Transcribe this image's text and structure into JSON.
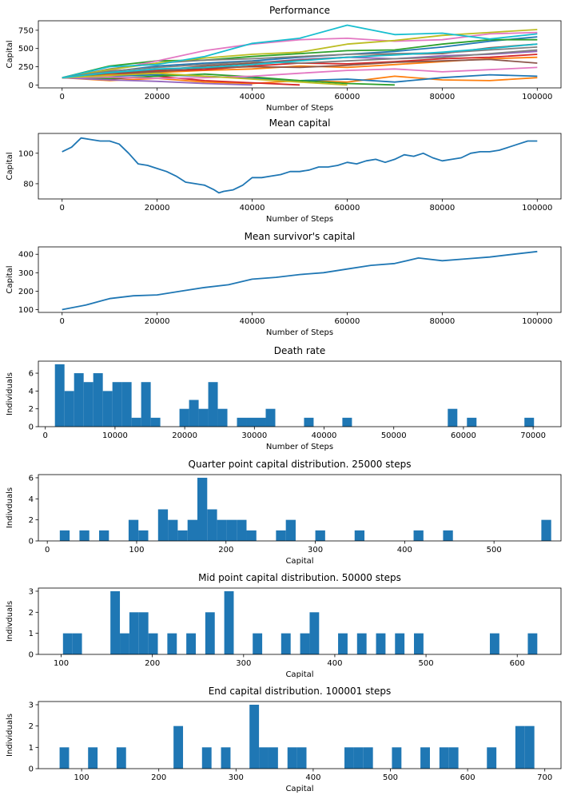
{
  "figure": {
    "colors": {
      "bar": "#1f77b4",
      "axis": "#000000"
    }
  },
  "chart_data": [
    {
      "type": "line",
      "title": "Performance",
      "xlabel": "Number of Steps",
      "ylabel": "Capital",
      "xlim": [
        -5000,
        105000
      ],
      "ylim": [
        -40,
        880
      ],
      "xticks": [
        0,
        20000,
        40000,
        60000,
        80000,
        100000
      ],
      "yticks": [
        0,
        250,
        500,
        750
      ],
      "x": [
        0,
        10000,
        20000,
        30000,
        40000,
        50000,
        60000,
        70000,
        80000,
        90000,
        100000
      ],
      "series_colors": [
        "#1f77b4",
        "#ff7f0e",
        "#2ca02c",
        "#d62728",
        "#9467bd",
        "#8c564b",
        "#e377c2",
        "#7f7f7f",
        "#bcbd22",
        "#17becf"
      ],
      "series": [
        {
          "values": [
            100,
            180,
            260,
            300,
            330,
            380,
            420,
            460,
            520,
            600,
            660
          ]
        },
        {
          "values": [
            100,
            60,
            90,
            40,
            20,
            60,
            40,
            120,
            70,
            60,
            100
          ]
        },
        {
          "values": [
            100,
            260,
            330,
            340,
            390,
            430,
            470,
            480,
            560,
            620,
            620
          ]
        },
        {
          "values": [
            100,
            80,
            120,
            60,
            30,
            0,
            null,
            null,
            null,
            null,
            null
          ]
        },
        {
          "values": [
            100,
            150,
            220,
            200,
            300,
            350,
            380,
            360,
            400,
            420,
            460
          ]
        },
        {
          "values": [
            100,
            150,
            200,
            260,
            300,
            340,
            380,
            420,
            430,
            510,
            560
          ]
        },
        {
          "values": [
            100,
            200,
            330,
            470,
            560,
            620,
            640,
            600,
            620,
            700,
            720
          ]
        },
        {
          "values": [
            100,
            220,
            300,
            340,
            360,
            390,
            420,
            430,
            440,
            480,
            520
          ]
        },
        {
          "values": [
            100,
            210,
            300,
            370,
            420,
            450,
            560,
            610,
            680,
            720,
            760
          ]
        },
        {
          "values": [
            100,
            250,
            280,
            390,
            570,
            640,
            820,
            690,
            710,
            630,
            700
          ]
        },
        {
          "values": [
            100,
            120,
            140,
            120,
            90,
            60,
            80,
            40,
            100,
            140,
            120
          ]
        },
        {
          "values": [
            100,
            140,
            170,
            200,
            220,
            260,
            240,
            280,
            320,
            360,
            380
          ]
        },
        {
          "values": [
            100,
            90,
            120,
            150,
            110,
            60,
            20,
            0,
            null,
            null,
            null
          ]
        },
        {
          "values": [
            100,
            130,
            190,
            210,
            260,
            300,
            290,
            320,
            360,
            380,
            420
          ]
        },
        {
          "values": [
            100,
            70,
            50,
            20,
            0,
            null,
            null,
            null,
            null,
            null,
            null
          ]
        },
        {
          "values": [
            100,
            160,
            180,
            230,
            250,
            240,
            270,
            310,
            330,
            350,
            300
          ]
        },
        {
          "values": [
            100,
            110,
            90,
            100,
            120,
            160,
            200,
            220,
            180,
            210,
            240
          ]
        },
        {
          "values": [
            100,
            190,
            240,
            280,
            320,
            300,
            330,
            360,
            380,
            430,
            480
          ]
        },
        {
          "values": [
            100,
            130,
            160,
            120,
            80,
            40,
            0,
            null,
            null,
            null,
            null
          ]
        },
        {
          "values": [
            100,
            170,
            220,
            240,
            280,
            330,
            380,
            410,
            450,
            500,
            560
          ]
        }
      ]
    },
    {
      "type": "line",
      "title": "Mean capital",
      "xlabel": "Number of Steps",
      "ylabel": "Capital",
      "xlim": [
        -5000,
        105000
      ],
      "ylim": [
        70,
        113
      ],
      "xticks": [
        0,
        20000,
        40000,
        60000,
        80000,
        100000
      ],
      "yticks": [
        80,
        100
      ],
      "x": [
        0,
        2000,
        4000,
        6000,
        8000,
        10000,
        12000,
        14000,
        16000,
        18000,
        20000,
        22000,
        24000,
        26000,
        28000,
        30000,
        32000,
        33000,
        34000,
        36000,
        38000,
        40000,
        42000,
        44000,
        46000,
        48000,
        50000,
        52000,
        54000,
        56000,
        58000,
        60000,
        62000,
        64000,
        66000,
        68000,
        70000,
        72000,
        74000,
        76000,
        78000,
        80000,
        82000,
        84000,
        86000,
        88000,
        90000,
        92000,
        94000,
        96000,
        98000,
        100000
      ],
      "series": [
        {
          "values": [
            101,
            104,
            110,
            109,
            108,
            108,
            106,
            100,
            93,
            92,
            90,
            88,
            85,
            81,
            80,
            79,
            76,
            74,
            75,
            76,
            79,
            84,
            84,
            85,
            86,
            88,
            88,
            89,
            91,
            91,
            92,
            94,
            93,
            95,
            96,
            94,
            96,
            99,
            98,
            100,
            97,
            95,
            96,
            97,
            100,
            101,
            101,
            102,
            104,
            106,
            108,
            108
          ]
        }
      ]
    },
    {
      "type": "line",
      "title": "Mean survivor's capital",
      "xlabel": "Number of Steps",
      "ylabel": "Capital",
      "xlim": [
        -5000,
        105000
      ],
      "ylim": [
        85,
        440
      ],
      "xticks": [
        0,
        20000,
        40000,
        60000,
        80000,
        100000
      ],
      "yticks": [
        100,
        200,
        300,
        400
      ],
      "x": [
        0,
        5000,
        10000,
        15000,
        20000,
        25000,
        30000,
        35000,
        40000,
        45000,
        50000,
        55000,
        60000,
        65000,
        70000,
        75000,
        80000,
        85000,
        90000,
        95000,
        100000
      ],
      "series": [
        {
          "values": [
            100,
            125,
            160,
            175,
            180,
            200,
            220,
            235,
            265,
            275,
            290,
            300,
            320,
            340,
            350,
            380,
            365,
            375,
            385,
            400,
            415
          ]
        }
      ]
    },
    {
      "type": "bar",
      "title": "Death rate",
      "xlabel": "Number of Steps",
      "ylabel": "Individuals",
      "xlim": [
        -1000,
        74000
      ],
      "ylim": [
        0,
        7.35
      ],
      "xticks": [
        0,
        10000,
        20000,
        30000,
        40000,
        50000,
        60000,
        70000
      ],
      "yticks": [
        0,
        2,
        4,
        6
      ],
      "bin_width": 1375,
      "bins": [
        {
          "x": 1375,
          "value": 7
        },
        {
          "x": 2750,
          "value": 4
        },
        {
          "x": 4125,
          "value": 6
        },
        {
          "x": 5500,
          "value": 5
        },
        {
          "x": 6875,
          "value": 6
        },
        {
          "x": 8250,
          "value": 4
        },
        {
          "x": 9625,
          "value": 5
        },
        {
          "x": 11000,
          "value": 5
        },
        {
          "x": 12375,
          "value": 1
        },
        {
          "x": 13750,
          "value": 5
        },
        {
          "x": 15125,
          "value": 1
        },
        {
          "x": 19250,
          "value": 2
        },
        {
          "x": 20625,
          "value": 3
        },
        {
          "x": 22000,
          "value": 2
        },
        {
          "x": 23375,
          "value": 5
        },
        {
          "x": 24750,
          "value": 2
        },
        {
          "x": 27500,
          "value": 1
        },
        {
          "x": 28875,
          "value": 1
        },
        {
          "x": 30250,
          "value": 1
        },
        {
          "x": 31625,
          "value": 2
        },
        {
          "x": 37125,
          "value": 1
        },
        {
          "x": 42625,
          "value": 1
        },
        {
          "x": 57750,
          "value": 2
        },
        {
          "x": 60500,
          "value": 1
        },
        {
          "x": 68750,
          "value": 1
        }
      ]
    },
    {
      "type": "bar",
      "title": "Quarter point capital distribution. 25000 steps",
      "xlabel": "Capital",
      "ylabel": "Indivduals",
      "xlim": [
        -10,
        575
      ],
      "ylim": [
        0,
        6.3
      ],
      "xticks": [
        0,
        100,
        200,
        300,
        400,
        500
      ],
      "yticks": [
        0,
        2,
        4,
        6
      ],
      "bin_width": 11,
      "bins": [
        {
          "x": 14,
          "value": 1
        },
        {
          "x": 36,
          "value": 1
        },
        {
          "x": 58,
          "value": 1
        },
        {
          "x": 91,
          "value": 2
        },
        {
          "x": 102,
          "value": 1
        },
        {
          "x": 124,
          "value": 3
        },
        {
          "x": 135,
          "value": 2
        },
        {
          "x": 146,
          "value": 1
        },
        {
          "x": 157,
          "value": 2
        },
        {
          "x": 168,
          "value": 6
        },
        {
          "x": 179,
          "value": 3
        },
        {
          "x": 190,
          "value": 2
        },
        {
          "x": 201,
          "value": 2
        },
        {
          "x": 212,
          "value": 2
        },
        {
          "x": 223,
          "value": 1
        },
        {
          "x": 256,
          "value": 1
        },
        {
          "x": 267,
          "value": 2
        },
        {
          "x": 300,
          "value": 1
        },
        {
          "x": 344,
          "value": 1
        },
        {
          "x": 410,
          "value": 1
        },
        {
          "x": 443,
          "value": 1
        },
        {
          "x": 553,
          "value": 2
        }
      ]
    },
    {
      "type": "bar",
      "title": "Mid point capital distribution. 50000 steps",
      "xlabel": "Capital",
      "ylabel": "Indivduals",
      "xlim": [
        75,
        648
      ],
      "ylim": [
        0,
        3.15
      ],
      "xticks": [
        100,
        200,
        300,
        400,
        500,
        600
      ],
      "yticks": [
        0,
        1,
        2,
        3
      ],
      "bin_width": 10.4,
      "bins": [
        {
          "x": 102,
          "value": 1
        },
        {
          "x": 112.4,
          "value": 1
        },
        {
          "x": 154,
          "value": 3
        },
        {
          "x": 164.4,
          "value": 1
        },
        {
          "x": 174.8,
          "value": 2
        },
        {
          "x": 185.2,
          "value": 2
        },
        {
          "x": 195.6,
          "value": 1
        },
        {
          "x": 216.4,
          "value": 1
        },
        {
          "x": 237.2,
          "value": 1
        },
        {
          "x": 258,
          "value": 2
        },
        {
          "x": 278.8,
          "value": 3
        },
        {
          "x": 310,
          "value": 1
        },
        {
          "x": 341.2,
          "value": 1
        },
        {
          "x": 362,
          "value": 1
        },
        {
          "x": 372.4,
          "value": 2
        },
        {
          "x": 403.6,
          "value": 1
        },
        {
          "x": 424.4,
          "value": 1
        },
        {
          "x": 445.2,
          "value": 1
        },
        {
          "x": 466,
          "value": 1
        },
        {
          "x": 486.8,
          "value": 1
        },
        {
          "x": 570,
          "value": 1
        },
        {
          "x": 611.6,
          "value": 1
        }
      ]
    },
    {
      "type": "bar",
      "title": "End capital distribution. 100001 steps",
      "xlabel": "Capital",
      "ylabel": "Individuals",
      "xlim": [
        44,
        721
      ],
      "ylim": [
        0,
        3.15
      ],
      "xticks": [
        100,
        200,
        300,
        400,
        500,
        600,
        700
      ],
      "yticks": [
        0,
        1,
        2,
        3
      ],
      "bin_width": 12.3,
      "bins": [
        {
          "x": 71.5,
          "value": 1
        },
        {
          "x": 108.4,
          "value": 1
        },
        {
          "x": 145.3,
          "value": 1
        },
        {
          "x": 219.1,
          "value": 2
        },
        {
          "x": 256,
          "value": 1
        },
        {
          "x": 280.6,
          "value": 1
        },
        {
          "x": 317.5,
          "value": 3
        },
        {
          "x": 329.8,
          "value": 1
        },
        {
          "x": 342.1,
          "value": 1
        },
        {
          "x": 366.7,
          "value": 1
        },
        {
          "x": 379,
          "value": 1
        },
        {
          "x": 440.5,
          "value": 1
        },
        {
          "x": 452.8,
          "value": 1
        },
        {
          "x": 465.1,
          "value": 1
        },
        {
          "x": 502,
          "value": 1
        },
        {
          "x": 538.9,
          "value": 1
        },
        {
          "x": 563.5,
          "value": 1
        },
        {
          "x": 575.8,
          "value": 1
        },
        {
          "x": 625,
          "value": 1
        },
        {
          "x": 661.9,
          "value": 2
        },
        {
          "x": 674.2,
          "value": 2
        }
      ]
    }
  ]
}
